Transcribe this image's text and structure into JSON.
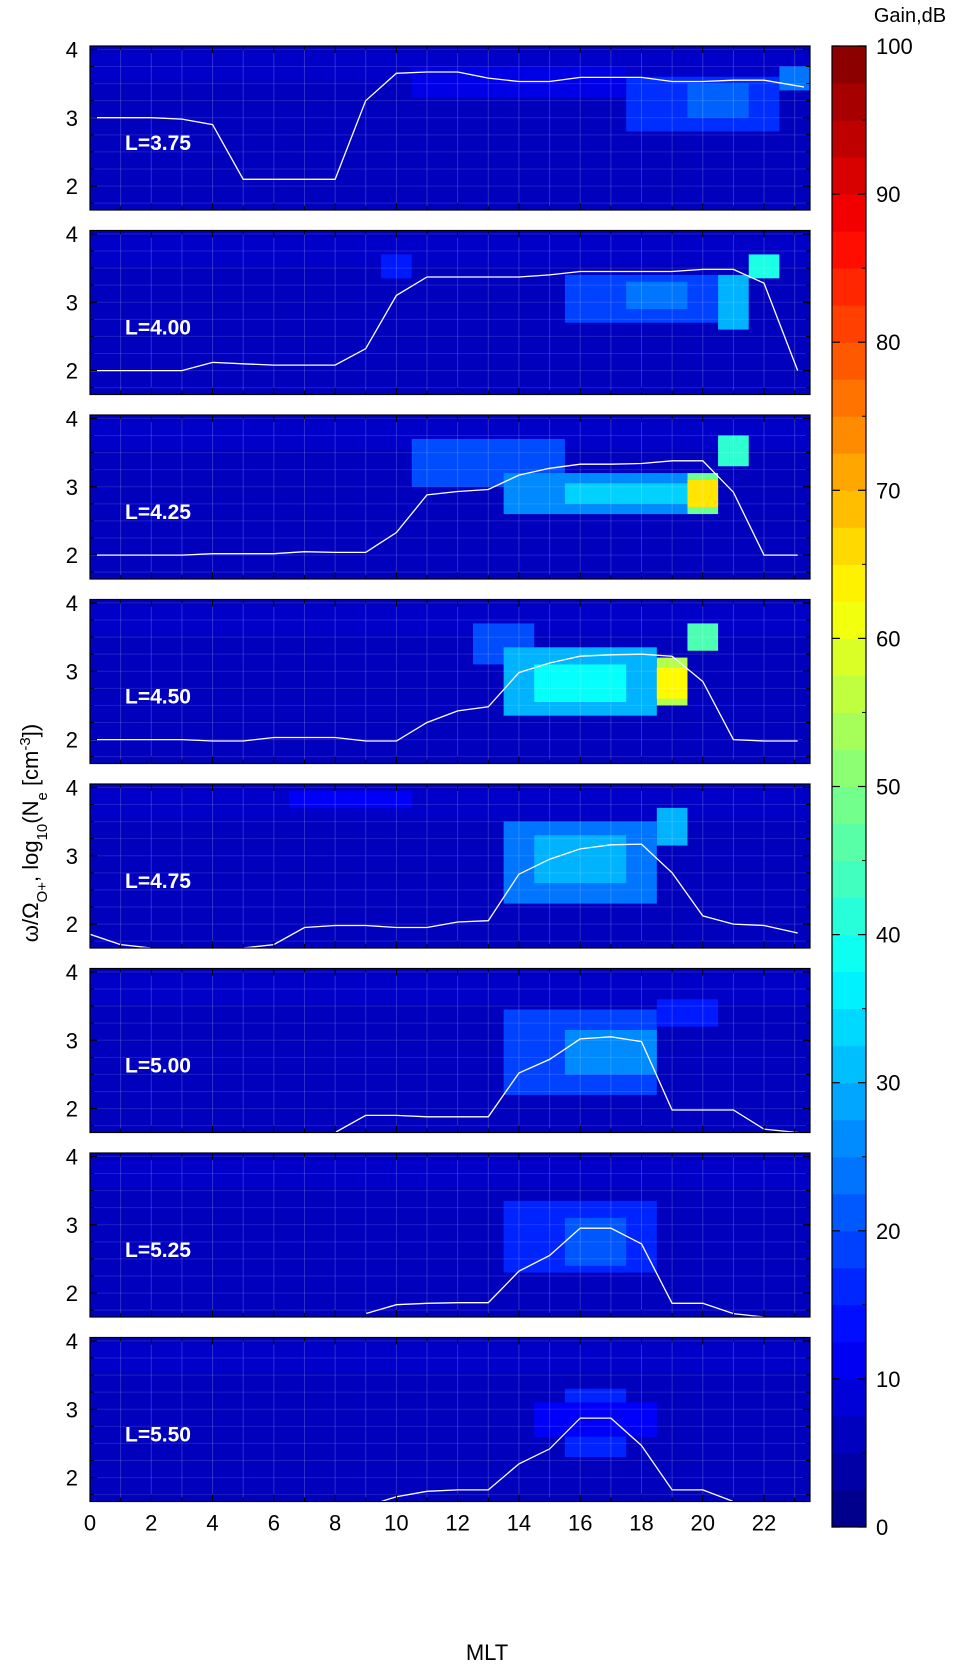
{
  "chart_data": {
    "type": "heatmap",
    "xlabel": "MLT",
    "x_ticks": [
      0,
      2,
      4,
      6,
      8,
      10,
      12,
      14,
      16,
      18,
      20,
      22
    ],
    "xlim": [
      0,
      23.5
    ],
    "ylim": [
      1.65,
      4.05
    ],
    "y_ticks": [
      2,
      3,
      4
    ],
    "grid": true,
    "colorbar": {
      "title": "Gain,dB",
      "range": [
        0,
        100
      ],
      "ticks": [
        0,
        10,
        20,
        30,
        40,
        50,
        60,
        70,
        80,
        90,
        100
      ],
      "colormap": "jet",
      "position": "right"
    },
    "line_color": "#ffffff",
    "panels": [
      {
        "label": "L=3.75",
        "line": [
          [
            0,
            3.0
          ],
          [
            1,
            3.0
          ],
          [
            2,
            3.0
          ],
          [
            3,
            2.98
          ],
          [
            4,
            2.9
          ],
          [
            5,
            2.1
          ],
          [
            6,
            2.1
          ],
          [
            7,
            2.1
          ],
          [
            8,
            2.1
          ],
          [
            9,
            3.25
          ],
          [
            10,
            3.65
          ],
          [
            11,
            3.67
          ],
          [
            12,
            3.67
          ],
          [
            13,
            3.58
          ],
          [
            14,
            3.53
          ],
          [
            15,
            3.53
          ],
          [
            16,
            3.59
          ],
          [
            17,
            3.59
          ],
          [
            18,
            3.59
          ],
          [
            19,
            3.53
          ],
          [
            20,
            3.53
          ],
          [
            21,
            3.55
          ],
          [
            22,
            3.55
          ],
          [
            23.3,
            3.45
          ]
        ],
        "blobs": [
          {
            "mlt": [
              17.5,
              22.5
            ],
            "y": [
              2.8,
              3.6
            ],
            "gain": 17
          },
          {
            "mlt": [
              19.5,
              21.5
            ],
            "y": [
              3.0,
              3.5
            ],
            "gain": 22
          },
          {
            "mlt": [
              22.5,
              23.5
            ],
            "y": [
              3.4,
              3.75
            ],
            "gain": 24
          },
          {
            "mlt": [
              10.5,
              17.5
            ],
            "y": [
              3.3,
              3.75
            ],
            "gain": 10
          }
        ]
      },
      {
        "label": "L=4.00",
        "line": [
          [
            0,
            2.0
          ],
          [
            1,
            2.0
          ],
          [
            2,
            2.0
          ],
          [
            3,
            2.0
          ],
          [
            4,
            2.12
          ],
          [
            5,
            2.1
          ],
          [
            6,
            2.08
          ],
          [
            7,
            2.08
          ],
          [
            8,
            2.08
          ],
          [
            9,
            2.32
          ],
          [
            10,
            3.1
          ],
          [
            11,
            3.37
          ],
          [
            12,
            3.37
          ],
          [
            13,
            3.37
          ],
          [
            14,
            3.37
          ],
          [
            15,
            3.4
          ],
          [
            16,
            3.45
          ],
          [
            17,
            3.45
          ],
          [
            18,
            3.45
          ],
          [
            19,
            3.45
          ],
          [
            20,
            3.48
          ],
          [
            21,
            3.48
          ],
          [
            22,
            3.28
          ],
          [
            23.1,
            2.0
          ]
        ],
        "blobs": [
          {
            "mlt": [
              9.5,
              10.5
            ],
            "y": [
              3.35,
              3.7
            ],
            "gain": 15
          },
          {
            "mlt": [
              15.5,
              20.5
            ],
            "y": [
              2.7,
              3.4
            ],
            "gain": 19
          },
          {
            "mlt": [
              17.5,
              19.5
            ],
            "y": [
              2.9,
              3.3
            ],
            "gain": 24
          },
          {
            "mlt": [
              20.5,
              21.5
            ],
            "y": [
              2.6,
              3.4
            ],
            "gain": 30
          },
          {
            "mlt": [
              21.5,
              22.5
            ],
            "y": [
              3.35,
              3.7
            ],
            "gain": 40
          }
        ]
      },
      {
        "label": "L=4.25",
        "line": [
          [
            0,
            2.0
          ],
          [
            1,
            2.0
          ],
          [
            2,
            2.0
          ],
          [
            3,
            2.0
          ],
          [
            4,
            2.02
          ],
          [
            5,
            2.02
          ],
          [
            6,
            2.02
          ],
          [
            7,
            2.05
          ],
          [
            8,
            2.04
          ],
          [
            9,
            2.04
          ],
          [
            10,
            2.33
          ],
          [
            11,
            2.88
          ],
          [
            12,
            2.93
          ],
          [
            13,
            2.96
          ],
          [
            14,
            3.17
          ],
          [
            15,
            3.27
          ],
          [
            16,
            3.33
          ],
          [
            17,
            3.33
          ],
          [
            18,
            3.34
          ],
          [
            19,
            3.38
          ],
          [
            20,
            3.38
          ],
          [
            21,
            2.92
          ],
          [
            22,
            2.0
          ],
          [
            23.1,
            2.0
          ]
        ],
        "blobs": [
          {
            "mlt": [
              10.5,
              15.5
            ],
            "y": [
              3.0,
              3.7
            ],
            "gain": 20
          },
          {
            "mlt": [
              13.5,
              19.5
            ],
            "y": [
              2.6,
              3.2
            ],
            "gain": 26
          },
          {
            "mlt": [
              15.5,
              19.5
            ],
            "y": [
              2.75,
              3.05
            ],
            "gain": 33
          },
          {
            "mlt": [
              19.5,
              20.5
            ],
            "y": [
              2.6,
              3.2
            ],
            "gain": 48
          },
          {
            "mlt": [
              19.5,
              20.5
            ],
            "y": [
              2.7,
              3.1
            ],
            "gain": 65
          },
          {
            "mlt": [
              20.5,
              21.5
            ],
            "y": [
              3.3,
              3.75
            ],
            "gain": 42
          }
        ]
      },
      {
        "label": "L=4.50",
        "line": [
          [
            0,
            2.0
          ],
          [
            1,
            2.0
          ],
          [
            2,
            2.0
          ],
          [
            3,
            2.0
          ],
          [
            4,
            1.98
          ],
          [
            5,
            1.98
          ],
          [
            6,
            2.03
          ],
          [
            7,
            2.03
          ],
          [
            8,
            2.03
          ],
          [
            9,
            1.98
          ],
          [
            10,
            1.98
          ],
          [
            11,
            2.25
          ],
          [
            12,
            2.42
          ],
          [
            13,
            2.48
          ],
          [
            14,
            2.98
          ],
          [
            15,
            3.12
          ],
          [
            16,
            3.22
          ],
          [
            17,
            3.24
          ],
          [
            18,
            3.25
          ],
          [
            19,
            3.22
          ],
          [
            20,
            2.85
          ],
          [
            21,
            2.0
          ],
          [
            22,
            1.98
          ],
          [
            23.1,
            1.98
          ]
        ],
        "blobs": [
          {
            "mlt": [
              12.5,
              14.5
            ],
            "y": [
              3.1,
              3.7
            ],
            "gain": 20
          },
          {
            "mlt": [
              13.5,
              18.5
            ],
            "y": [
              2.35,
              3.35
            ],
            "gain": 30
          },
          {
            "mlt": [
              14.5,
              17.5
            ],
            "y": [
              2.55,
              3.1
            ],
            "gain": 38
          },
          {
            "mlt": [
              18.5,
              19.5
            ],
            "y": [
              2.5,
              3.2
            ],
            "gain": 55
          },
          {
            "mlt": [
              18.5,
              19.5
            ],
            "y": [
              2.6,
              3.05
            ],
            "gain": 63
          },
          {
            "mlt": [
              19.5,
              20.5
            ],
            "y": [
              3.3,
              3.7
            ],
            "gain": 45
          }
        ]
      },
      {
        "label": "L=4.75",
        "line": [
          [
            0,
            1.85
          ],
          [
            1,
            1.7
          ],
          [
            2,
            1.65
          ],
          [
            3,
            1.62
          ],
          [
            4,
            1.62
          ],
          [
            5,
            1.65
          ],
          [
            6,
            1.7
          ],
          [
            7,
            1.95
          ],
          [
            8,
            1.98
          ],
          [
            9,
            1.98
          ],
          [
            10,
            1.95
          ],
          [
            11,
            1.95
          ],
          [
            12,
            2.03
          ],
          [
            13,
            2.05
          ],
          [
            14,
            2.73
          ],
          [
            15,
            2.95
          ],
          [
            16,
            3.1
          ],
          [
            17,
            3.16
          ],
          [
            18,
            3.17
          ],
          [
            19,
            2.75
          ],
          [
            20,
            2.12
          ],
          [
            21,
            2.0
          ],
          [
            22,
            1.98
          ],
          [
            23.1,
            1.87
          ]
        ],
        "blobs": [
          {
            "mlt": [
              13.5,
              18.5
            ],
            "y": [
              2.3,
              3.5
            ],
            "gain": 24
          },
          {
            "mlt": [
              14.5,
              17.5
            ],
            "y": [
              2.6,
              3.3
            ],
            "gain": 30
          },
          {
            "mlt": [
              18.5,
              19.5
            ],
            "y": [
              3.15,
              3.7
            ],
            "gain": 30
          },
          {
            "mlt": [
              6.5,
              10.5
            ],
            "y": [
              3.7,
              3.95
            ],
            "gain": 12
          }
        ]
      },
      {
        "label": "L=5.00",
        "line": [
          [
            8,
            1.65
          ],
          [
            9,
            1.9
          ],
          [
            10,
            1.9
          ],
          [
            11,
            1.88
          ],
          [
            12,
            1.88
          ],
          [
            13,
            1.88
          ],
          [
            14,
            2.52
          ],
          [
            15,
            2.72
          ],
          [
            16,
            3.02
          ],
          [
            17,
            3.05
          ],
          [
            18,
            2.98
          ],
          [
            19,
            1.98
          ],
          [
            20,
            1.98
          ],
          [
            21,
            1.98
          ],
          [
            22,
            1.7
          ],
          [
            23.1,
            1.65
          ]
        ],
        "blobs": [
          {
            "mlt": [
              13.5,
              18.5
            ],
            "y": [
              2.2,
              3.45
            ],
            "gain": 19
          },
          {
            "mlt": [
              15.5,
              18.5
            ],
            "y": [
              2.5,
              3.15
            ],
            "gain": 26
          },
          {
            "mlt": [
              18.5,
              20.5
            ],
            "y": [
              3.2,
              3.6
            ],
            "gain": 15
          }
        ]
      },
      {
        "label": "L=5.25",
        "line": [
          [
            9,
            1.7
          ],
          [
            10,
            1.83
          ],
          [
            11,
            1.85
          ],
          [
            12,
            1.86
          ],
          [
            13,
            1.86
          ],
          [
            14,
            2.32
          ],
          [
            15,
            2.55
          ],
          [
            16,
            2.95
          ],
          [
            17,
            2.95
          ],
          [
            18,
            2.72
          ],
          [
            19,
            1.85
          ],
          [
            20,
            1.85
          ],
          [
            21,
            1.7
          ],
          [
            22,
            1.65
          ]
        ],
        "blobs": [
          {
            "mlt": [
              13.5,
              18.5
            ],
            "y": [
              2.3,
              3.35
            ],
            "gain": 16
          },
          {
            "mlt": [
              15.5,
              17.5
            ],
            "y": [
              2.4,
              3.1
            ],
            "gain": 21
          }
        ]
      },
      {
        "label": "L=5.50",
        "line": [
          [
            9.5,
            1.65
          ],
          [
            10,
            1.72
          ],
          [
            11,
            1.8
          ],
          [
            12,
            1.82
          ],
          [
            13,
            1.82
          ],
          [
            14,
            2.2
          ],
          [
            15,
            2.42
          ],
          [
            16,
            2.87
          ],
          [
            17,
            2.87
          ],
          [
            18,
            2.47
          ],
          [
            19,
            1.82
          ],
          [
            20,
            1.82
          ],
          [
            21,
            1.65
          ]
        ],
        "blobs": [
          {
            "mlt": [
              15.5,
              17.5
            ],
            "y": [
              2.3,
              3.3
            ],
            "gain": 16
          },
          {
            "mlt": [
              14.5,
              18.5
            ],
            "y": [
              2.6,
              3.1
            ],
            "gain": 12
          }
        ]
      }
    ]
  }
}
